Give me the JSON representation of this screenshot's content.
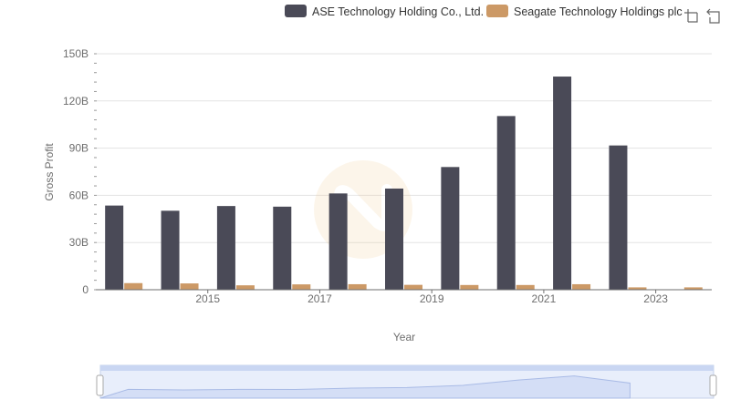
{
  "chart_data": {
    "type": "bar",
    "x": [
      2014,
      2015,
      2016,
      2017,
      2018,
      2019,
      2020,
      2021,
      2022,
      2023,
      2024
    ],
    "x_tick_labels": [
      "2015",
      "2017",
      "2019",
      "2021",
      "2023"
    ],
    "series": [
      {
        "name": "ASE Technology Holding Co., Ltd.",
        "color": "#4a4a57",
        "values": [
          53.5,
          50.2,
          53.2,
          52.8,
          61.2,
          64.3,
          78.0,
          110.4,
          135.5,
          91.7,
          null
        ]
      },
      {
        "name": "Seagate Technology Holdings plc",
        "color": "#cc9966",
        "values": [
          4.2,
          4.0,
          2.8,
          3.4,
          3.5,
          3.1,
          3.0,
          3.0,
          3.5,
          1.5,
          1.5
        ]
      }
    ],
    "xlabel": "Year",
    "ylabel": "Gross Profit",
    "ylim": [
      0,
      150
    ],
    "y_ticks": [
      0,
      30,
      60,
      90,
      120,
      150
    ],
    "y_tick_labels": [
      "0",
      "30B",
      "60B",
      "90B",
      "120B",
      "150B"
    ],
    "grid": true,
    "legend_position": "top-right"
  },
  "toolbar": {
    "icons": [
      "zoom-icon",
      "reset-zoom-icon"
    ]
  }
}
